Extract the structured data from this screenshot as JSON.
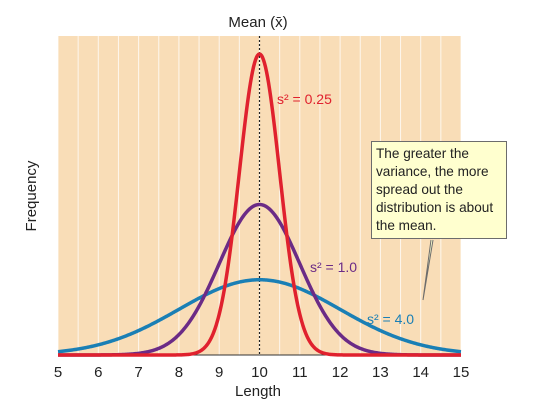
{
  "chart_data": {
    "type": "line",
    "xlabel": "Length",
    "ylabel": "Frequency",
    "xlim": [
      5,
      15
    ],
    "x_ticks": [
      "5",
      "6",
      "7",
      "8",
      "9",
      "10",
      "11",
      "12",
      "13",
      "14",
      "15"
    ],
    "grid": "vertical",
    "background_color": "#f9ddb7",
    "mean_line": {
      "label": "Mean (x̄)",
      "x": 10
    },
    "series": [
      {
        "name": "s² = 0.25",
        "mean": 10,
        "variance": 0.25,
        "color": "#e0212e"
      },
      {
        "name": "s² = 1.0",
        "mean": 10,
        "variance": 1.0,
        "color": "#6b2b86"
      },
      {
        "name": "s² = 4.0",
        "mean": 10,
        "variance": 4.0,
        "color": "#1a7fb5"
      }
    ],
    "annotation": "The greater the variance, the more spread out the distribution is about the mean."
  }
}
